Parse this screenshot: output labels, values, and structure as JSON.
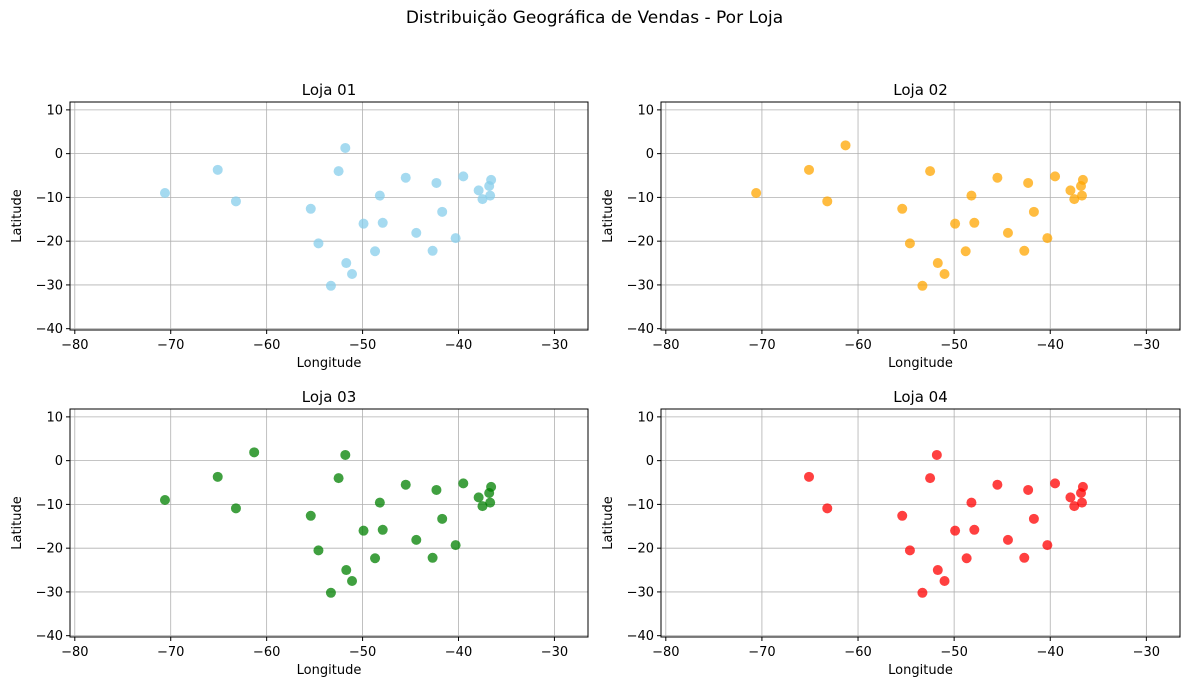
{
  "figure": {
    "suptitle": "Distribuição Geográfica de Vendas - Por Loja"
  },
  "chart_data": [
    {
      "type": "scatter",
      "title": "Loja 01",
      "xlabel": "Longitude",
      "ylabel": "Latitude",
      "xlim": [
        -80.5,
        -26.5
      ],
      "ylim": [
        -40.3,
        11.8
      ],
      "xticks": [
        -80,
        -70,
        -60,
        -50,
        -40,
        -30
      ],
      "yticks": [
        10,
        0,
        -10,
        -20,
        -30,
        -40
      ],
      "grid": true,
      "color": "#87ceeb",
      "points": [
        [
          -70.6,
          -9.0
        ],
        [
          -65.1,
          -3.7
        ],
        [
          -63.2,
          -10.9
        ],
        [
          -51.8,
          1.3
        ],
        [
          -52.5,
          -4.0
        ],
        [
          -55.4,
          -12.6
        ],
        [
          -54.6,
          -20.5
        ],
        [
          -51.7,
          -25.0
        ],
        [
          -51.1,
          -27.5
        ],
        [
          -53.3,
          -30.2
        ],
        [
          -49.9,
          -16.0
        ],
        [
          -48.7,
          -22.3
        ],
        [
          -48.2,
          -9.6
        ],
        [
          -47.9,
          -15.8
        ],
        [
          -45.5,
          -5.5
        ],
        [
          -44.4,
          -18.1
        ],
        [
          -42.3,
          -6.7
        ],
        [
          -41.7,
          -13.3
        ],
        [
          -42.7,
          -22.2
        ],
        [
          -39.5,
          -5.2
        ],
        [
          -40.3,
          -19.3
        ],
        [
          -37.9,
          -8.4
        ],
        [
          -37.5,
          -10.4
        ],
        [
          -36.7,
          -9.6
        ],
        [
          -36.8,
          -7.4
        ],
        [
          -36.6,
          -6.0
        ]
      ]
    },
    {
      "type": "scatter",
      "title": "Loja 02",
      "xlabel": "Longitude",
      "ylabel": "Latitude",
      "xlim": [
        -80.5,
        -26.5
      ],
      "ylim": [
        -40.3,
        11.8
      ],
      "xticks": [
        -80,
        -70,
        -60,
        -50,
        -40,
        -30
      ],
      "yticks": [
        10,
        0,
        -10,
        -20,
        -30,
        -40
      ],
      "grid": true,
      "color": "#ffa500",
      "points": [
        [
          -70.6,
          -9.0
        ],
        [
          -65.1,
          -3.7
        ],
        [
          -63.2,
          -10.9
        ],
        [
          -61.3,
          1.9
        ],
        [
          -52.5,
          -4.0
        ],
        [
          -55.4,
          -12.6
        ],
        [
          -54.6,
          -20.5
        ],
        [
          -51.7,
          -25.0
        ],
        [
          -51.0,
          -27.5
        ],
        [
          -53.3,
          -30.2
        ],
        [
          -49.9,
          -16.0
        ],
        [
          -48.8,
          -22.3
        ],
        [
          -48.2,
          -9.6
        ],
        [
          -47.9,
          -15.8
        ],
        [
          -45.5,
          -5.5
        ],
        [
          -44.4,
          -18.1
        ],
        [
          -42.3,
          -6.7
        ],
        [
          -41.7,
          -13.3
        ],
        [
          -42.7,
          -22.2
        ],
        [
          -39.5,
          -5.2
        ],
        [
          -40.3,
          -19.3
        ],
        [
          -37.9,
          -8.4
        ],
        [
          -37.5,
          -10.4
        ],
        [
          -36.7,
          -9.6
        ],
        [
          -36.8,
          -7.4
        ],
        [
          -36.6,
          -6.0
        ]
      ]
    },
    {
      "type": "scatter",
      "title": "Loja 03",
      "xlabel": "Longitude",
      "ylabel": "Latitude",
      "xlim": [
        -80.5,
        -26.5
      ],
      "ylim": [
        -40.3,
        11.8
      ],
      "xticks": [
        -80,
        -70,
        -60,
        -50,
        -40,
        -30
      ],
      "yticks": [
        10,
        0,
        -10,
        -20,
        -30,
        -40
      ],
      "grid": true,
      "color": "#008000",
      "points": [
        [
          -70.6,
          -9.0
        ],
        [
          -65.1,
          -3.7
        ],
        [
          -63.2,
          -10.9
        ],
        [
          -61.3,
          1.9
        ],
        [
          -51.8,
          1.3
        ],
        [
          -52.5,
          -4.0
        ],
        [
          -55.4,
          -12.6
        ],
        [
          -54.6,
          -20.5
        ],
        [
          -51.7,
          -25.0
        ],
        [
          -51.1,
          -27.5
        ],
        [
          -53.3,
          -30.2
        ],
        [
          -49.9,
          -16.0
        ],
        [
          -48.7,
          -22.3
        ],
        [
          -48.2,
          -9.6
        ],
        [
          -47.9,
          -15.8
        ],
        [
          -45.5,
          -5.5
        ],
        [
          -44.4,
          -18.1
        ],
        [
          -42.3,
          -6.7
        ],
        [
          -41.7,
          -13.3
        ],
        [
          -42.7,
          -22.2
        ],
        [
          -39.5,
          -5.2
        ],
        [
          -40.3,
          -19.3
        ],
        [
          -37.9,
          -8.4
        ],
        [
          -37.5,
          -10.4
        ],
        [
          -36.7,
          -9.6
        ],
        [
          -36.8,
          -7.4
        ],
        [
          -36.6,
          -6.0
        ]
      ]
    },
    {
      "type": "scatter",
      "title": "Loja 04",
      "xlabel": "Longitude",
      "ylabel": "Latitude",
      "xlim": [
        -80.5,
        -26.5
      ],
      "ylim": [
        -40.3,
        11.8
      ],
      "xticks": [
        -80,
        -70,
        -60,
        -50,
        -40,
        -30
      ],
      "yticks": [
        10,
        0,
        -10,
        -20,
        -30,
        -40
      ],
      "grid": true,
      "color": "#ff0000",
      "points": [
        [
          -65.1,
          -3.7
        ],
        [
          -63.2,
          -10.9
        ],
        [
          -51.8,
          1.3
        ],
        [
          -52.5,
          -4.0
        ],
        [
          -55.4,
          -12.6
        ],
        [
          -54.6,
          -20.5
        ],
        [
          -51.7,
          -25.0
        ],
        [
          -51.0,
          -27.5
        ],
        [
          -53.3,
          -30.2
        ],
        [
          -49.9,
          -16.0
        ],
        [
          -48.7,
          -22.3
        ],
        [
          -48.2,
          -9.6
        ],
        [
          -47.9,
          -15.8
        ],
        [
          -45.5,
          -5.5
        ],
        [
          -44.4,
          -18.1
        ],
        [
          -42.3,
          -6.7
        ],
        [
          -41.7,
          -13.3
        ],
        [
          -42.7,
          -22.2
        ],
        [
          -39.5,
          -5.2
        ],
        [
          -40.3,
          -19.3
        ],
        [
          -37.9,
          -8.4
        ],
        [
          -37.5,
          -10.4
        ],
        [
          -36.7,
          -9.6
        ],
        [
          -36.8,
          -7.4
        ],
        [
          -36.6,
          -6.0
        ]
      ]
    }
  ]
}
